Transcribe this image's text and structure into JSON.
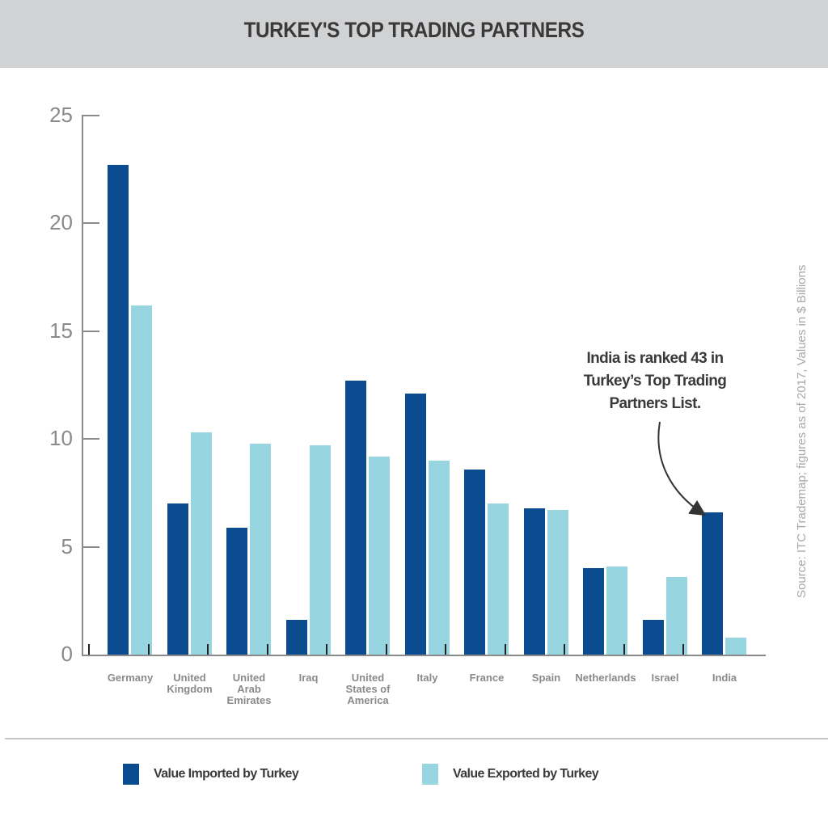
{
  "header": {
    "title": "TURKEY'S TOP TRADING PARTNERS"
  },
  "colors": {
    "imported": "#0b4b8f",
    "exported": "#97d6e0",
    "header_bg": "#d1d2d4"
  },
  "annotation": {
    "line1": "India is ranked 43 in",
    "line2": "Turkey’s Top Trading",
    "line3": "Partners List."
  },
  "source_note": "Source: ITC Trademap; figures as of 2017, Values in $ Billions",
  "legend": [
    {
      "label": "Value Imported by Turkey",
      "color": "#0b4b8f"
    },
    {
      "label": "Value Exported by Turkey",
      "color": "#97d6e0"
    }
  ],
  "y_ticks": [
    "0",
    "5",
    "10",
    "15",
    "20",
    "25"
  ],
  "x_labels": [
    [
      "Germany"
    ],
    [
      "United",
      "Kingdom"
    ],
    [
      "United",
      "Arab",
      "Emirates"
    ],
    [
      "Iraq"
    ],
    [
      "United",
      "States of",
      "America"
    ],
    [
      "Italy"
    ],
    [
      "France"
    ],
    [
      "Spain"
    ],
    [
      "Netherlands"
    ],
    [
      "Israel"
    ],
    [
      "India"
    ]
  ],
  "chart_data": {
    "type": "bar",
    "title": "TURKEY'S TOP TRADING PARTNERS",
    "xlabel": "",
    "ylabel": "Values in $ Billions",
    "ylim": [
      0,
      25
    ],
    "yticks": [
      0,
      5,
      10,
      15,
      20,
      25
    ],
    "grid": false,
    "legend_position": "bottom",
    "categories": [
      "Germany",
      "United Kingdom",
      "United Arab Emirates",
      "Iraq",
      "United States of America",
      "Italy",
      "France",
      "Spain",
      "Netherlands",
      "Israel",
      "India"
    ],
    "series": [
      {
        "name": "Value Imported by Turkey",
        "color": "#0b4b8f",
        "values": [
          22.7,
          7.0,
          5.9,
          1.6,
          12.7,
          12.1,
          8.6,
          6.8,
          4.0,
          1.6,
          6.6
        ]
      },
      {
        "name": "Value Exported by Turkey",
        "color": "#97d6e0",
        "values": [
          16.2,
          10.3,
          9.8,
          9.7,
          9.2,
          9.0,
          7.0,
          6.7,
          4.1,
          3.6,
          0.8
        ]
      }
    ],
    "annotations": [
      "India is ranked 43 in Turkey’s Top Trading Partners List."
    ],
    "source": "Source: ITC Trademap; figures as of 2017, Values in $ Billions"
  }
}
